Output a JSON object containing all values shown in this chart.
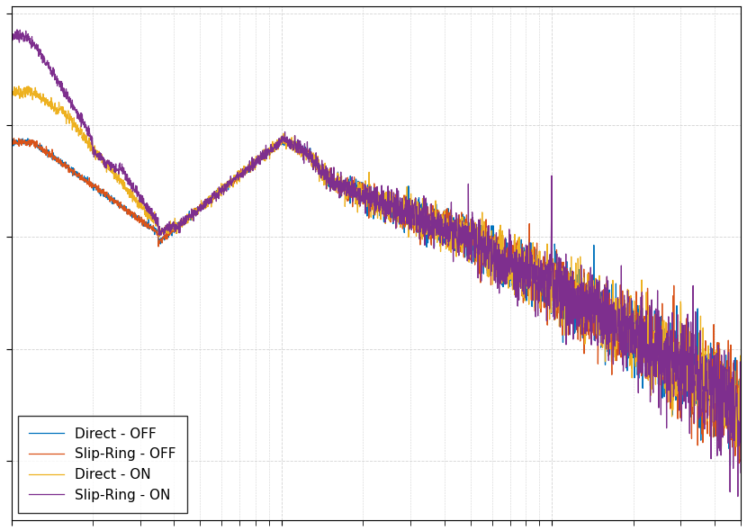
{
  "legend_labels": [
    "Direct - OFF",
    "Slip-Ring - OFF",
    "Direct - ON",
    "Slip-Ring - ON"
  ],
  "colors": [
    "#0072BD",
    "#D95319",
    "#EDB120",
    "#7E2F8E"
  ],
  "background_color": "#FFFFFF",
  "grid_color": "#D3D3D3",
  "linewidth": 0.9,
  "legend_fontsize": 11,
  "tick_fontsize": 10
}
